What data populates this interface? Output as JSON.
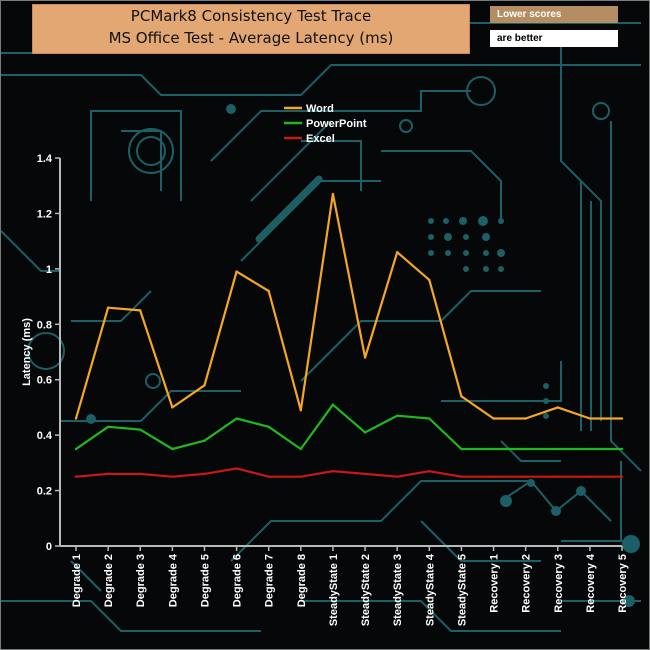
{
  "header": {
    "title_line1": "PCMark8 Consistency Test Trace",
    "title_line2": "MS Office Test -  Average Latency (ms)"
  },
  "notes": {
    "line1": "Lower scores",
    "line2": "are better"
  },
  "colors": {
    "background": "#050708",
    "circuit": "#1c5f66",
    "axis": "#b9b9b9",
    "word": "#f5a623",
    "powerpoint": "#1fb81f",
    "excel": "#c81818"
  },
  "chart_data": {
    "type": "line",
    "title": "PCMark8 Consistency Test Trace MS Office Test -  Average Latency (ms)",
    "ylabel": "Latency (ms)",
    "xlabel": "",
    "ylim": [
      0,
      1.4
    ],
    "yticks": [
      "0",
      "0.2",
      "0.4",
      "0.6",
      "0.8",
      "1",
      "1.2",
      "1.4"
    ],
    "legend_position": "top-center",
    "grid": false,
    "categories": [
      "Degrade 1",
      "Degrade 2",
      "Degrade 3",
      "Degrade 4",
      "Degrade 5",
      "Degrade 6",
      "Degrade 7",
      "Degrade 8",
      "SteadyState 1",
      "SteadyState 2",
      "SteadyState 3",
      "SteadyState 4",
      "SteadyState 5",
      "Recovery 1",
      "Recovery 2",
      "Recovery 3",
      "Recovery 4",
      "Recovery 5"
    ],
    "series": [
      {
        "name": "Word",
        "color": "#f5a623",
        "values": [
          0.46,
          0.86,
          0.85,
          0.5,
          0.58,
          0.99,
          0.92,
          0.49,
          1.27,
          0.68,
          1.06,
          0.96,
          0.54,
          0.46,
          0.46,
          0.5,
          0.46,
          0.46
        ]
      },
      {
        "name": "PowerPoint",
        "color": "#1fb81f",
        "values": [
          0.35,
          0.43,
          0.42,
          0.35,
          0.38,
          0.46,
          0.43,
          0.35,
          0.51,
          0.41,
          0.47,
          0.46,
          0.35,
          0.35,
          0.35,
          0.35,
          0.35,
          0.35
        ]
      },
      {
        "name": "Excel",
        "color": "#c81818",
        "values": [
          0.25,
          0.26,
          0.26,
          0.25,
          0.26,
          0.28,
          0.25,
          0.25,
          0.27,
          0.26,
          0.25,
          0.27,
          0.25,
          0.25,
          0.25,
          0.25,
          0.25,
          0.25
        ]
      }
    ]
  }
}
